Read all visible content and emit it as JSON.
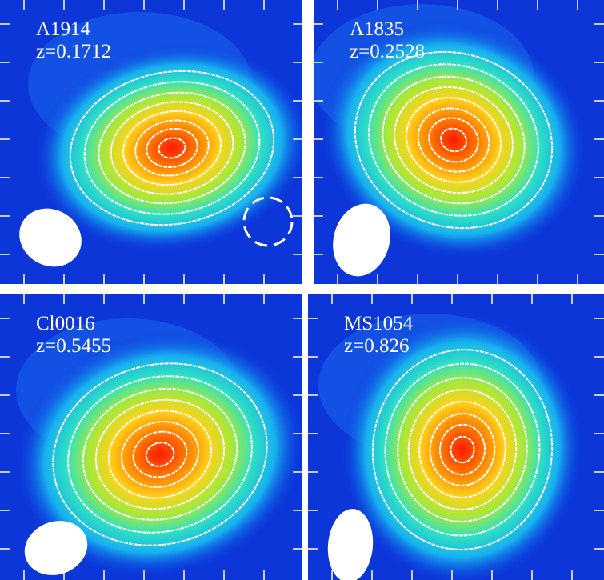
{
  "panels": [
    {
      "name": "A1914",
      "redshift": "z=0.1712"
    },
    {
      "name": "A1835",
      "redshift": "z=0.2528"
    },
    {
      "name": "Cl0016",
      "redshift": "z=0.5455"
    },
    {
      "name": "MS1054",
      "redshift": "z=0.826"
    }
  ]
}
